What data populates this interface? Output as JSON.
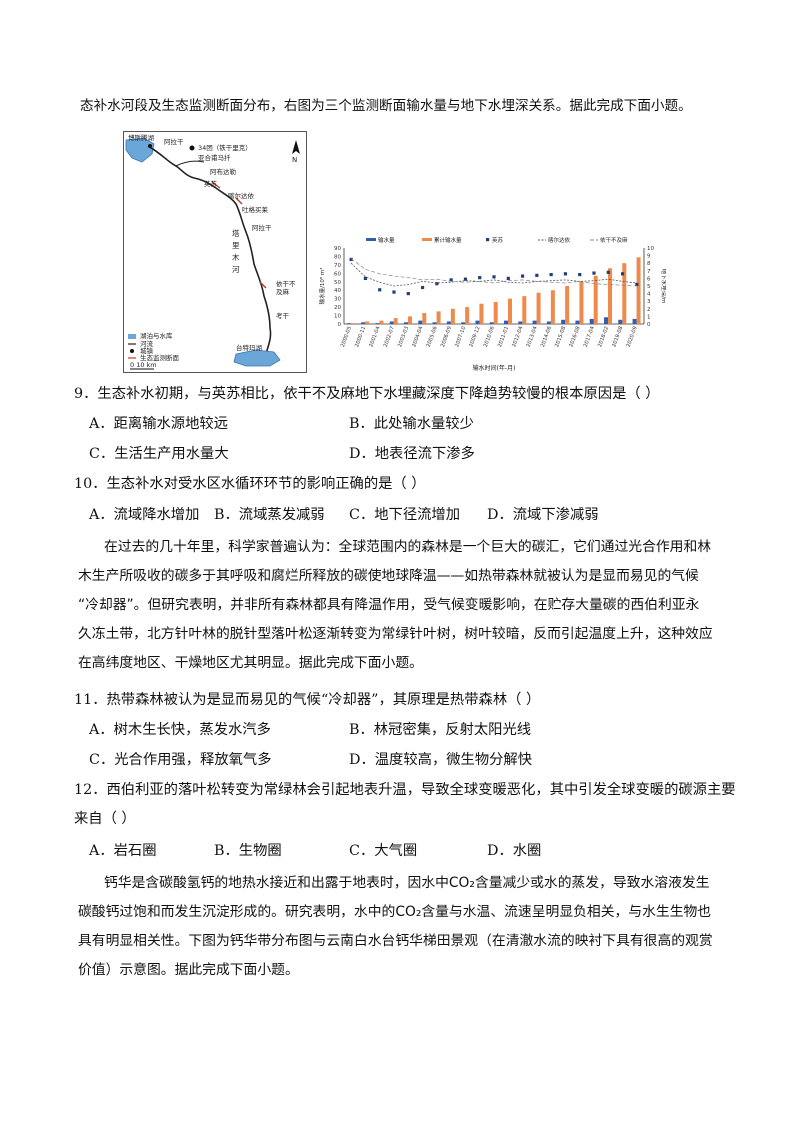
{
  "intro": "态补水河段及生态监测断面分布，右图为三个监测断面输水量与地下水埋深关系。据此完成下面小题。",
  "map": {
    "labels": {
      "bosten": "博斯腾湖",
      "alagan_top": "阿拉干",
      "shaogan": "34团（铁干里克）",
      "yala": "亚合甫马扦",
      "yingsu": "英苏",
      "abudan": "阿布达勒",
      "kaerdun": "喀尔达依",
      "tugemaili": "吐格买莱",
      "alagan": "阿拉干",
      "yiganbuma": "依干不及麻",
      "kaogan": "考干",
      "taitema": "台特玛湖",
      "river": "塔里木河",
      "north": "N"
    },
    "legend": [
      "湖泊与水库",
      "河流",
      "城镇",
      "生态监测断面"
    ],
    "scale": "0   10 km"
  },
  "chart_data": {
    "type": "bar",
    "title": "",
    "xlabel": "输水时间(年-月)",
    "ylabel": "输水量/10⁸ m³",
    "ylabel_right": "地下水埋深/m",
    "legend": [
      "输水量",
      "累计输水量",
      "英苏",
      "喀尔达依",
      "依干不及麻"
    ],
    "categories": [
      "2000-05",
      "2000-11",
      "2001-04",
      "2002-07",
      "2003-03",
      "2004-04",
      "2005-06",
      "2006-09",
      "2007-10",
      "2009-12",
      "2010-06",
      "2011-01",
      "2012-04",
      "2013-04",
      "2014-06",
      "2015-08",
      "2016-08",
      "2017-04",
      "2018-02",
      "2019-08",
      "2020-09"
    ],
    "y_ticks_left": [
      "0",
      "10",
      "20",
      "30",
      "40",
      "50",
      "60",
      "70",
      "80",
      "90"
    ],
    "y_ticks_right": [
      "0",
      "1",
      "2",
      "3",
      "4",
      "5",
      "6",
      "7",
      "8",
      "9",
      "10"
    ],
    "ylim": [
      0,
      90
    ],
    "ylim_right": [
      0,
      10
    ],
    "series": [
      {
        "name": "输水量",
        "color": "#2e5fb0",
        "values": [
          1,
          2,
          1,
          3,
          2,
          4,
          2,
          3,
          2,
          4,
          2,
          4,
          3,
          4,
          3,
          5,
          4,
          6,
          8,
          5,
          6
        ]
      },
      {
        "name": "累计输水量",
        "color": "#f08a4b",
        "values": [
          1,
          3,
          4,
          7,
          9,
          13,
          15,
          18,
          20,
          24,
          26,
          30,
          33,
          37,
          40,
          45,
          50,
          57,
          66,
          72,
          79
        ]
      },
      {
        "name": "英苏",
        "color": "#1f3f7a",
        "values": [
          8.5,
          6,
          4.5,
          4.2,
          4,
          4.8,
          5.3,
          5.8,
          5.9,
          6.1,
          6.2,
          6,
          6.3,
          6.4,
          6.5,
          6.6,
          6.5,
          6.7,
          6.8,
          6.6,
          5.2
        ]
      },
      {
        "name": "喀尔达依",
        "color": "#555555",
        "values": [
          8,
          6.2,
          5.5,
          5,
          5.2,
          5.6,
          5.4,
          5.5,
          5.7,
          5.6,
          5.8,
          5.5,
          5.4,
          5.6,
          5.7,
          5.8,
          5.6,
          5.7,
          5.9,
          5.6,
          5.4
        ]
      },
      {
        "name": "依干不及麻",
        "color": "#888888",
        "values": [
          8.6,
          7.2,
          6.6,
          6.3,
          6.1,
          5.8,
          5.9,
          5.6,
          5.5,
          5.6,
          5.4,
          5.7,
          5.8,
          5.6,
          5.5,
          5.4,
          5.6,
          5.3,
          5.2,
          5.1,
          5.0
        ]
      }
    ]
  },
  "q9": {
    "stem": "9．生态补水初期，与英苏相比，依干不及麻地下水埋藏深度下降趋势较慢的根本原因是（    ）",
    "options": [
      "A．距离输水源地较远",
      "B．此处输水量较少",
      "C．生活生产用水量大",
      "D．地表径流下渗多"
    ]
  },
  "q10": {
    "stem": "10．生态补水对受水区水循环环节的影响正确的是（    ）",
    "options": [
      "A．流域降水增加",
      "B．流域蒸发减弱",
      "C．地下径流增加",
      "D．流域下渗减弱"
    ]
  },
  "passage2": [
    "在过去的几十年里，科学家普遍认为：全球范围内的森林是一个巨大的碳汇，它们通过光合作用和林",
    "木生产所吸收的碳多于其呼吸和腐烂所释放的碳使地球降温——如热带森林就被认为是显而易见的气候",
    "“冷却器”。但研究表明，并非所有森林都具有降温作用，受气候变暖影响，在贮存大量碳的西伯利亚永",
    "久冻土带，北方针叶林的脱针型落叶松逐渐转变为常绿针叶树，树叶较暗，反而引起温度上升，这种效应",
    "在高纬度地区、干燥地区尤其明显。据此完成下面小题。"
  ],
  "q11": {
    "stem": "11．热带森林被认为是显而易见的气候“冷却器”，其原理是热带森林（    ）",
    "options": [
      "A．树木生长快，蒸发水汽多",
      "B．林冠密集，反射太阳光线",
      "C．光合作用强，释放氧气多",
      "D．温度较高，微生物分解快"
    ]
  },
  "q12": {
    "stem_line1": "12．西伯利亚的落叶松转变为常绿林会引起地表升温，导致全球变暖恶化，其中引发全球变暖的碳源主要",
    "stem_line2": "来自（    ）",
    "options": [
      "A．岩石圈",
      "B．生物圈",
      "C．大气圈",
      "D．水圈"
    ]
  },
  "passage3": [
    "钙华是含碳酸氢钙的地热水接近和出露于地表时，因水中CO₂含量减少或水的蒸发，导致水溶液发生",
    "碳酸钙过饱和而发生沉淀形成的。研究表明，水中的CO₂含量与水温、流速呈明显负相关，与水生生物也",
    "具有明显相关性。下图为钙华带分布图与云南白水台钙华梯田景观（在清澈水流的映衬下具有很高的观赏",
    "价值）示意图。据此完成下面小题。"
  ]
}
